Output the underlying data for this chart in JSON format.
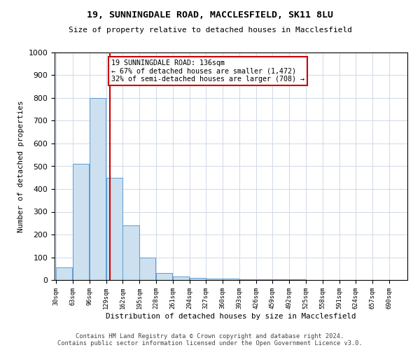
{
  "title1": "19, SUNNINGDALE ROAD, MACCLESFIELD, SK11 8LU",
  "title2": "Size of property relative to detached houses in Macclesfield",
  "xlabel": "Distribution of detached houses by size in Macclesfield",
  "ylabel": "Number of detached properties",
  "bin_edges": [
    30,
    63,
    96,
    129,
    162,
    195,
    228,
    261,
    294,
    327,
    360,
    393,
    426,
    459,
    492,
    525,
    558,
    591,
    624,
    657,
    690,
    723
  ],
  "heights": [
    55,
    510,
    800,
    450,
    240,
    100,
    30,
    15,
    10,
    5,
    5,
    3,
    2,
    2,
    2,
    1,
    1,
    1,
    1,
    1,
    1
  ],
  "bar_color": "#cce0f0",
  "bar_edge_color": "#5b9bd5",
  "property_line_x": 136,
  "annotation_text": "19 SUNNINGDALE ROAD: 136sqm\n← 67% of detached houses are smaller (1,472)\n32% of semi-detached houses are larger (708) →",
  "annotation_box_color": "#ffffff",
  "annotation_box_edge": "#cc0000",
  "vline_color": "#cc0000",
  "ylim": [
    0,
    1000
  ],
  "yticks": [
    0,
    100,
    200,
    300,
    400,
    500,
    600,
    700,
    800,
    900,
    1000
  ],
  "xtick_labels": [
    "30sqm",
    "63sqm",
    "96sqm",
    "129sqm",
    "162sqm",
    "195sqm",
    "228sqm",
    "261sqm",
    "294sqm",
    "327sqm",
    "360sqm",
    "393sqm",
    "426sqm",
    "459sqm",
    "492sqm",
    "525sqm",
    "558sqm",
    "591sqm",
    "624sqm",
    "657sqm",
    "690sqm"
  ],
  "footer_line1": "Contains HM Land Registry data © Crown copyright and database right 2024.",
  "footer_line2": "Contains public sector information licensed under the Open Government Licence v3.0.",
  "bg_color": "#ffffff",
  "grid_color": "#d0d8e8"
}
